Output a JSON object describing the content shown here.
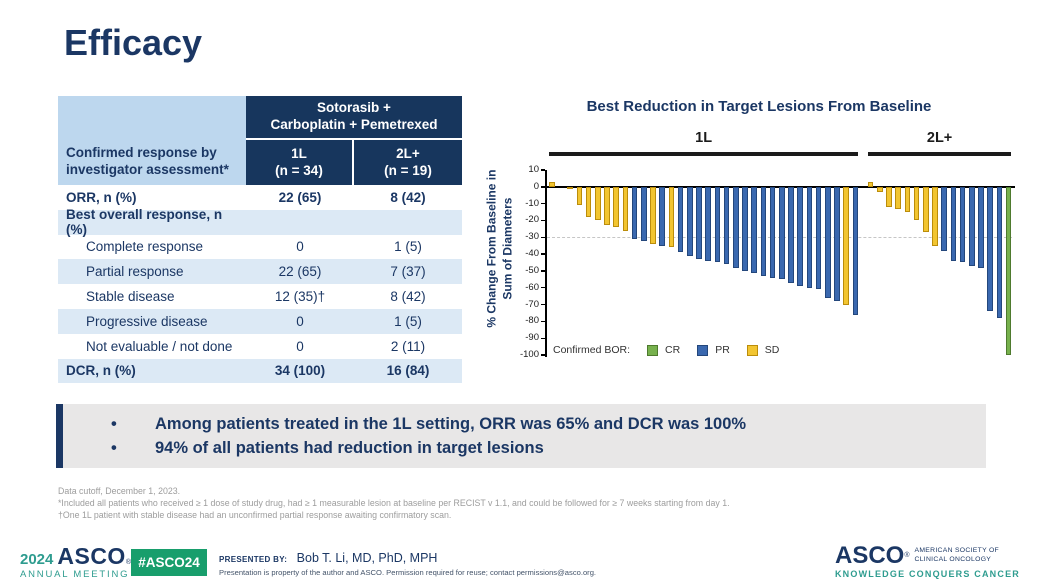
{
  "slide": {
    "title": "Efficacy"
  },
  "table": {
    "corner_label": "Confirmed response by investigator assessment*",
    "group_header": "Sotorasib +\nCarboplatin + Pemetrexed",
    "columns": [
      "1L\n(n = 34)",
      "2L+\n(n = 19)"
    ],
    "rows": [
      {
        "label": "ORR, n (%)",
        "c1": "22 (65)",
        "c2": "8 (42)",
        "bold": true,
        "indent": false
      },
      {
        "label": "Best overall response, n (%)",
        "c1": "",
        "c2": "",
        "bold": true,
        "indent": false
      },
      {
        "label": "Complete response",
        "c1": "0",
        "c2": "1 (5)",
        "bold": false,
        "indent": true
      },
      {
        "label": "Partial response",
        "c1": "22 (65)",
        "c2": "7 (37)",
        "bold": false,
        "indent": true
      },
      {
        "label": "Stable disease",
        "c1": "12 (35)†",
        "c2": "8 (42)",
        "bold": false,
        "indent": true
      },
      {
        "label": "Progressive disease",
        "c1": "0",
        "c2": "1 (5)",
        "bold": false,
        "indent": true
      },
      {
        "label": "Not evaluable / not done",
        "c1": "0",
        "c2": "2 (11)",
        "bold": false,
        "indent": true
      },
      {
        "label": "DCR, n (%)",
        "c1": "34 (100)",
        "c2": "16 (84)",
        "bold": true,
        "indent": false
      }
    ]
  },
  "chart_data": {
    "type": "bar",
    "title": "Best Reduction in Target Lesions From Baseline",
    "ylabel_line1": "% Change From Baseline in",
    "ylabel_line2": "Sum of Diameters",
    "ylim": [
      -100,
      10
    ],
    "yticks": [
      10,
      0,
      -10,
      -20,
      -30,
      -40,
      -50,
      -60,
      -70,
      -80,
      -90,
      -100
    ],
    "dashed_reference": -30,
    "legend_label": "Confirmed BOR:",
    "legend": [
      {
        "code": "CR",
        "fill": "#77B14D",
        "border": "#4E7A2E"
      },
      {
        "code": "PR",
        "fill": "#3A68AF",
        "border": "#24477C"
      },
      {
        "code": "SD",
        "fill": "#F2C531",
        "border": "#BB8D0B"
      }
    ],
    "groups": [
      {
        "label": "1L",
        "bars": [
          {
            "v": 3,
            "bor": "SD"
          },
          {
            "v": 0,
            "bor": "SD"
          },
          {
            "v": -1,
            "bor": "SD"
          },
          {
            "v": -11,
            "bor": "SD"
          },
          {
            "v": -18,
            "bor": "SD"
          },
          {
            "v": -20,
            "bor": "SD"
          },
          {
            "v": -23,
            "bor": "SD"
          },
          {
            "v": -24,
            "bor": "SD"
          },
          {
            "v": -26,
            "bor": "SD"
          },
          {
            "v": -31,
            "bor": "PR"
          },
          {
            "v": -32,
            "bor": "PR"
          },
          {
            "v": -34,
            "bor": "SD"
          },
          {
            "v": -35,
            "bor": "PR"
          },
          {
            "v": -36,
            "bor": "SD"
          },
          {
            "v": -39,
            "bor": "PR"
          },
          {
            "v": -41,
            "bor": "PR"
          },
          {
            "v": -43,
            "bor": "PR"
          },
          {
            "v": -44,
            "bor": "PR"
          },
          {
            "v": -45,
            "bor": "PR"
          },
          {
            "v": -46,
            "bor": "PR"
          },
          {
            "v": -48,
            "bor": "PR"
          },
          {
            "v": -50,
            "bor": "PR"
          },
          {
            "v": -51,
            "bor": "PR"
          },
          {
            "v": -53,
            "bor": "PR"
          },
          {
            "v": -54,
            "bor": "PR"
          },
          {
            "v": -55,
            "bor": "PR"
          },
          {
            "v": -57,
            "bor": "PR"
          },
          {
            "v": -59,
            "bor": "PR"
          },
          {
            "v": -60,
            "bor": "PR"
          },
          {
            "v": -61,
            "bor": "PR"
          },
          {
            "v": -66,
            "bor": "PR"
          },
          {
            "v": -68,
            "bor": "PR"
          },
          {
            "v": -70,
            "bor": "SD"
          },
          {
            "v": -76,
            "bor": "PR"
          }
        ]
      },
      {
        "label": "2L+",
        "bars": [
          {
            "v": 3,
            "bor": "SD"
          },
          {
            "v": -3,
            "bor": "SD"
          },
          {
            "v": -12,
            "bor": "SD"
          },
          {
            "v": -13,
            "bor": "SD"
          },
          {
            "v": -15,
            "bor": "SD"
          },
          {
            "v": -20,
            "bor": "SD"
          },
          {
            "v": -27,
            "bor": "SD"
          },
          {
            "v": -35,
            "bor": "SD"
          },
          {
            "v": -38,
            "bor": "PR"
          },
          {
            "v": -44,
            "bor": "PR"
          },
          {
            "v": -45,
            "bor": "PR"
          },
          {
            "v": -47,
            "bor": "PR"
          },
          {
            "v": -48,
            "bor": "PR"
          },
          {
            "v": -74,
            "bor": "PR"
          },
          {
            "v": -78,
            "bor": "PR"
          },
          {
            "v": -100,
            "bor": "CR"
          }
        ]
      }
    ]
  },
  "bullets": [
    "Among patients treated in the 1L setting, ORR was 65% and DCR was 100%",
    "94% of all patients had reduction in target lesions"
  ],
  "footnotes": [
    "Data cutoff, December 1, 2023.",
    "*Included all patients who received  ≥ 1 dose of study drug, had ≥ 1 measurable lesion at baseline  per RECIST v 1.1, and could be followed for ≥ 7 weeks starting from day 1.",
    "†One 1L patient with stable disease had an unconfirmed partial response awaiting confirmatory scan."
  ],
  "footer": {
    "year": "2024",
    "logo_asco": "ASCO",
    "reg_mark": "®",
    "annual_meeting": "ANNUAL MEETING",
    "hashtag": "#ASCO24",
    "presented_by_label": "PRESENTED BY:",
    "presenter": "Bob T. Li, MD, PhD, MPH",
    "disclaimer": "Presentation is property of the author and ASCO. Permission required for reuse; contact permissions@asco.org.",
    "right_logo": "ASCO",
    "right_society_line1": "AMERICAN SOCIETY OF",
    "right_society_line2": "CLINICAL ONCOLOGY",
    "right_tagline": "KNOWLEDGE CONQUERS CANCER"
  },
  "colors": {
    "navy": "#1B3764",
    "teal": "#2E9C8F",
    "badge_green": "#189E6C",
    "table_header_navy": "#17365D",
    "table_light_blue": "#BDD7EE",
    "table_stripe": "#DCE9F5",
    "callout_gray": "#E8E7E7"
  }
}
